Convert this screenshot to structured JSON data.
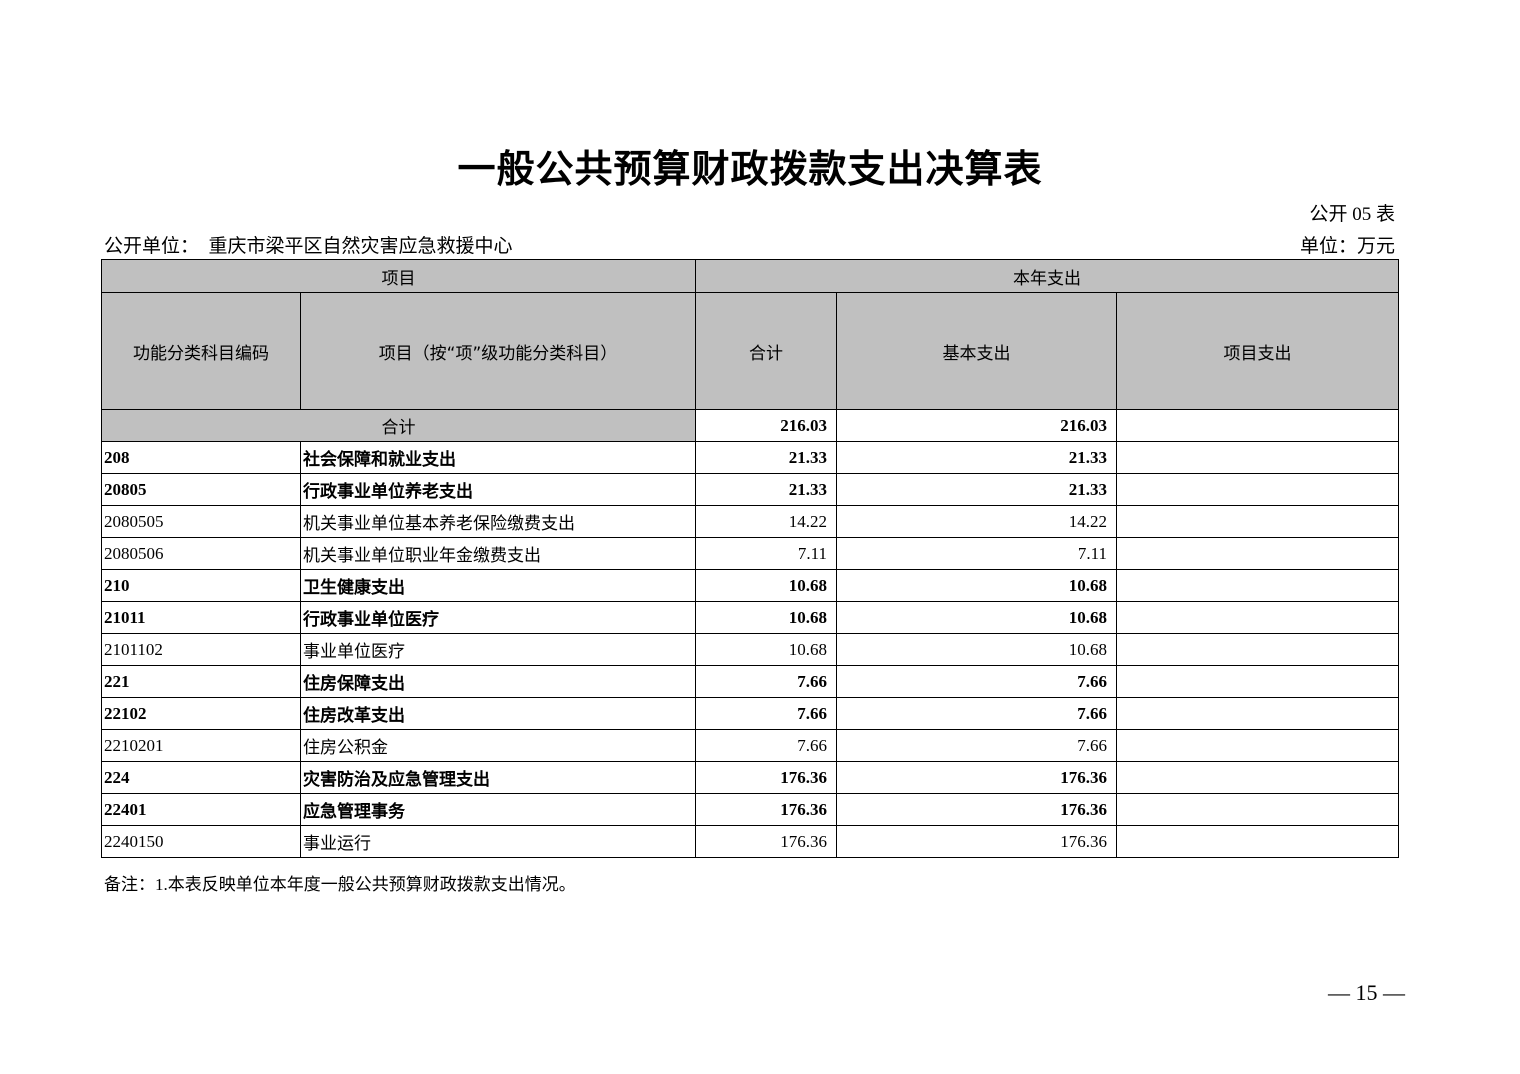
{
  "title": "一般公共预算财政拨款支出决算表",
  "form_no": "公开 05 表",
  "unit_label": "公开单位：",
  "unit_name": "重庆市梁平区自然灾害应急救援中心",
  "currency_unit": "单位：万元",
  "header": {
    "group_item": "项目",
    "group_expense": "本年支出",
    "code": "功能分类科目编码",
    "item": "项目（按“项”级功能分类科目）",
    "total": "合计",
    "basic": "基本支出",
    "project": "项目支出"
  },
  "total_row": {
    "label": "合计",
    "total": "216.03",
    "basic": "216.03",
    "project": ""
  },
  "rows": [
    {
      "code": "208",
      "name": "社会保障和就业支出",
      "total": "21.33",
      "basic": "21.33",
      "project": "",
      "bold": true
    },
    {
      "code": "20805",
      "name": "行政事业单位养老支出",
      "total": "21.33",
      "basic": "21.33",
      "project": "",
      "bold": true
    },
    {
      "code": "2080505",
      "name": "机关事业单位基本养老保险缴费支出",
      "total": "14.22",
      "basic": "14.22",
      "project": "",
      "bold": false
    },
    {
      "code": "2080506",
      "name": "机关事业单位职业年金缴费支出",
      "total": "7.11",
      "basic": "7.11",
      "project": "",
      "bold": false
    },
    {
      "code": "210",
      "name": "卫生健康支出",
      "total": "10.68",
      "basic": "10.68",
      "project": "",
      "bold": true
    },
    {
      "code": "21011",
      "name": "行政事业单位医疗",
      "total": "10.68",
      "basic": "10.68",
      "project": "",
      "bold": true
    },
    {
      "code": "2101102",
      "name": "事业单位医疗",
      "total": "10.68",
      "basic": "10.68",
      "project": "",
      "bold": false
    },
    {
      "code": "221",
      "name": "住房保障支出",
      "total": "7.66",
      "basic": "7.66",
      "project": "",
      "bold": true
    },
    {
      "code": "22102",
      "name": "住房改革支出",
      "total": "7.66",
      "basic": "7.66",
      "project": "",
      "bold": true
    },
    {
      "code": "2210201",
      "name": "住房公积金",
      "total": "7.66",
      "basic": "7.66",
      "project": "",
      "bold": false
    },
    {
      "code": "224",
      "name": "灾害防治及应急管理支出",
      "total": "176.36",
      "basic": "176.36",
      "project": "",
      "bold": true
    },
    {
      "code": "22401",
      "name": "应急管理事务",
      "total": "176.36",
      "basic": "176.36",
      "project": "",
      "bold": true
    },
    {
      "code": "2240150",
      "name": "事业运行",
      "total": "176.36",
      "basic": "176.36",
      "project": "",
      "bold": false
    }
  ],
  "note": "备注：1.本表反映单位本年度一般公共预算财政拨款支出情况。",
  "page_number": "— 15 —",
  "colors": {
    "header_bg": "#c0c0c0"
  }
}
